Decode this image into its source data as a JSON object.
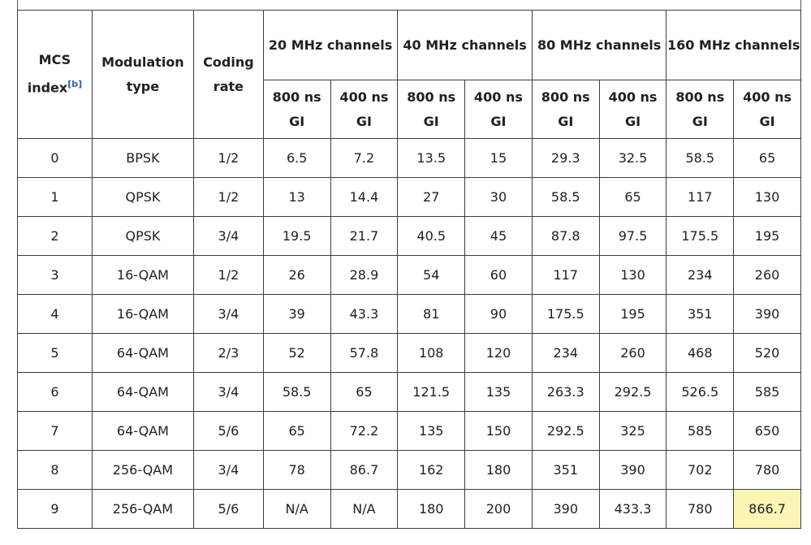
{
  "caption_fragment": "",
  "headers": {
    "mcs": "MCS",
    "index": "index",
    "index_ref": "[b]",
    "modulation": "Modulation type",
    "coding": "Coding rate",
    "groups": [
      "20 MHz channels",
      "40 MHz channels",
      "80 MHz channels",
      "160 MHz channels"
    ],
    "gi_800": "800 ns GI",
    "gi_400": "400 ns GI"
  },
  "rows": [
    [
      "0",
      "BPSK",
      "1/2",
      "6.5",
      "7.2",
      "13.5",
      "15",
      "29.3",
      "32.5",
      "58.5",
      "65"
    ],
    [
      "1",
      "QPSK",
      "1/2",
      "13",
      "14.4",
      "27",
      "30",
      "58.5",
      "65",
      "117",
      "130"
    ],
    [
      "2",
      "QPSK",
      "3/4",
      "19.5",
      "21.7",
      "40.5",
      "45",
      "87.8",
      "97.5",
      "175.5",
      "195"
    ],
    [
      "3",
      "16-QAM",
      "1/2",
      "26",
      "28.9",
      "54",
      "60",
      "117",
      "130",
      "234",
      "260"
    ],
    [
      "4",
      "16-QAM",
      "3/4",
      "39",
      "43.3",
      "81",
      "90",
      "175.5",
      "195",
      "351",
      "390"
    ],
    [
      "5",
      "64-QAM",
      "2/3",
      "52",
      "57.8",
      "108",
      "120",
      "234",
      "260",
      "468",
      "520"
    ],
    [
      "6",
      "64-QAM",
      "3/4",
      "58.5",
      "65",
      "121.5",
      "135",
      "263.3",
      "292.5",
      "526.5",
      "585"
    ],
    [
      "7",
      "64-QAM",
      "5/6",
      "65",
      "72.2",
      "135",
      "150",
      "292.5",
      "325",
      "585",
      "650"
    ],
    [
      "8",
      "256-QAM",
      "3/4",
      "78",
      "86.7",
      "162",
      "180",
      "351",
      "390",
      "702",
      "780"
    ],
    [
      "9",
      "256-QAM",
      "5/6",
      "N/A",
      "N/A",
      "180",
      "200",
      "390",
      "433.3",
      "780",
      "866.7"
    ]
  ],
  "highlight": {
    "row": 9,
    "col": 10,
    "color": "#fdf5b6"
  }
}
